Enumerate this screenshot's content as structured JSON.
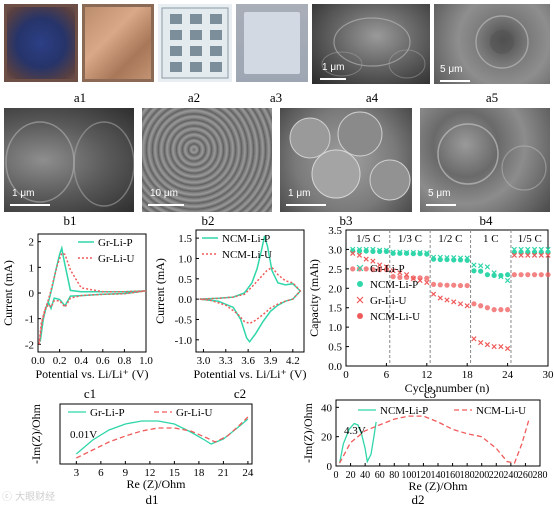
{
  "captions": {
    "a1": "a1",
    "a2": "a2",
    "a3": "a3",
    "a4": "a4",
    "a5": "a5",
    "b1": "b1",
    "b2": "b2",
    "b3": "b3",
    "b4": "b4",
    "c1": "c1",
    "c2": "c2",
    "c3": "c3",
    "d1": "d1",
    "d2": "d2"
  },
  "scalebars": {
    "a4": "1 μm",
    "a5": "5 μm",
    "b1": "1 μm",
    "b2": "10 μm",
    "b3": "1 μm",
    "b4": "5 μm"
  },
  "colors": {
    "p_series": "#2fd6a9",
    "u_series": "#f05a5a"
  },
  "c1": {
    "ylabel": "Current (mA)",
    "xlabel": "Potential vs. Li/Li⁺ (V)",
    "xticks": [
      "0.0",
      "0.2",
      "0.4",
      "0.6",
      "0.8",
      "1.0"
    ],
    "yticks": [
      "2",
      "1",
      "0",
      "-1",
      "-2"
    ],
    "legend": [
      "Gr-Li-P",
      "Gr-Li-U"
    ]
  },
  "c2": {
    "ylabel": "Current (mA)",
    "xlabel": "Potential vs. Li/Li⁺ (V)",
    "xticks": [
      "3.0",
      "3.3",
      "3.6",
      "3.9",
      "4.2"
    ],
    "yticks": [
      "1.5",
      "1.0",
      "0.5",
      "0.0",
      "-0.5",
      "-1.0"
    ],
    "legend": [
      "NCM-Li-P",
      "NCM-Li-U"
    ]
  },
  "c3": {
    "ylabel": "Capacity (mAh)",
    "xlabel": "Cycle number (n)",
    "xticks": [
      "0",
      "6",
      "12",
      "18",
      "24",
      "30"
    ],
    "yticks": [
      "3.5",
      "3.0",
      "2.5",
      "2.0",
      "1.5",
      "1.0",
      "0.5",
      "0.0"
    ],
    "rates": [
      "1/5 C",
      "1/3 C",
      "1/2 C",
      "1 C",
      "1/5 C"
    ],
    "legend": [
      "Gr-Li-P",
      "NCM-Li-P",
      "Gr-Li-U",
      "NCM-Li-U"
    ]
  },
  "d1": {
    "ylabel": "-Im(Z)/Ohm",
    "xlabel": "Re (Z)/Ohm",
    "xticks": [
      "3",
      "6",
      "9",
      "12",
      "15",
      "18",
      "21",
      "24"
    ],
    "legend": [
      "Gr-Li-P",
      "Gr-Li-U"
    ],
    "annotation": "0.01V"
  },
  "d2": {
    "ylabel": "-Im(Z)/Ohm",
    "xlabel": "Re (Z)/Ohm",
    "xticks": [
      "0",
      "20",
      "40",
      "60",
      "80",
      "100",
      "120",
      "140",
      "160",
      "180",
      "200",
      "220",
      "240",
      "260",
      "280"
    ],
    "yticks": [
      "40",
      "20",
      "0"
    ],
    "legend": [
      "NCM-Li-P",
      "NCM-Li-U"
    ],
    "annotation": "4.3V"
  },
  "watermark": "ⓒ 大眼财经",
  "chart_data": [
    {
      "type": "line",
      "title": "c1",
      "xlabel": "Potential vs. Li/Li⁺ (V)",
      "ylabel": "Current (mA)",
      "xlim": [
        0.0,
        1.0
      ],
      "ylim": [
        -2.3,
        2.3
      ],
      "series": [
        {
          "name": "Gr-Li-P",
          "style": "solid",
          "x": [
            0.02,
            0.04,
            0.07,
            0.1,
            0.13,
            0.16,
            0.2,
            0.22,
            0.24,
            0.3,
            0.4,
            0.6,
            0.8,
            1.0,
            0.8,
            0.6,
            0.4,
            0.3,
            0.25,
            0.2,
            0.15,
            0.12,
            0.1,
            0.08,
            0.05,
            0.02
          ],
          "y": [
            -1.9,
            -1.1,
            -0.6,
            -0.3,
            0.2,
            0.8,
            1.5,
            1.75,
            1.3,
            0.1,
            0.05,
            0.05,
            0.05,
            0.08,
            -0.02,
            -0.05,
            -0.1,
            -0.12,
            -0.5,
            -0.25,
            -0.2,
            -0.6,
            -0.4,
            -0.5,
            -1.0,
            -1.9
          ]
        },
        {
          "name": "Gr-Li-U",
          "style": "dotted",
          "x": [
            0.01,
            0.03,
            0.06,
            0.09,
            0.12,
            0.15,
            0.18,
            0.22,
            0.25,
            0.3,
            0.4,
            0.6,
            0.8,
            1.0,
            0.8,
            0.6,
            0.4,
            0.3,
            0.25,
            0.2,
            0.15,
            0.12,
            0.1,
            0.07,
            0.04,
            0.01
          ],
          "y": [
            -2.0,
            -1.2,
            -0.7,
            -0.35,
            0.1,
            0.6,
            1.1,
            1.55,
            1.5,
            0.9,
            0.2,
            0.05,
            0.05,
            0.08,
            -0.03,
            -0.05,
            -0.1,
            -0.2,
            -0.55,
            -0.3,
            -0.3,
            -0.55,
            -0.45,
            -0.6,
            -1.1,
            -2.0
          ]
        }
      ]
    },
    {
      "type": "line",
      "title": "c2",
      "xlabel": "Potential vs. Li/Li⁺ (V)",
      "ylabel": "Current (mA)",
      "xlim": [
        2.9,
        4.35
      ],
      "ylim": [
        -1.3,
        1.7
      ],
      "series": [
        {
          "name": "NCM-Li-P",
          "style": "solid",
          "x": [
            2.95,
            3.2,
            3.4,
            3.55,
            3.65,
            3.72,
            3.78,
            3.82,
            3.86,
            3.92,
            4.0,
            4.1,
            4.2,
            4.3,
            4.2,
            4.1,
            4.0,
            3.9,
            3.8,
            3.7,
            3.62,
            3.58,
            3.5,
            3.4,
            3.2,
            2.95
          ],
          "y": [
            0.0,
            0.02,
            0.05,
            0.15,
            0.4,
            0.75,
            1.2,
            1.55,
            1.3,
            0.7,
            0.4,
            0.35,
            0.38,
            0.2,
            0.0,
            -0.05,
            -0.15,
            -0.3,
            -0.55,
            -0.85,
            -1.05,
            -0.95,
            -0.5,
            -0.2,
            -0.05,
            0.0
          ]
        },
        {
          "name": "NCM-Li-U",
          "style": "dotted",
          "x": [
            2.95,
            3.2,
            3.4,
            3.55,
            3.65,
            3.75,
            3.85,
            3.92,
            4.0,
            4.1,
            4.2,
            4.3,
            4.2,
            4.1,
            4.0,
            3.9,
            3.8,
            3.7,
            3.62,
            3.55,
            3.45,
            3.3,
            3.1,
            2.95
          ],
          "y": [
            0.0,
            0.02,
            0.05,
            0.12,
            0.3,
            0.5,
            0.7,
            0.78,
            0.6,
            0.45,
            0.4,
            0.2,
            0.0,
            -0.05,
            -0.12,
            -0.22,
            -0.38,
            -0.52,
            -0.6,
            -0.55,
            -0.35,
            -0.15,
            -0.03,
            0.0
          ]
        }
      ]
    },
    {
      "type": "scatter",
      "title": "c3",
      "xlabel": "Cycle number (n)",
      "ylabel": "Capacity (mAh)",
      "xlim": [
        0,
        30
      ],
      "ylim": [
        0.0,
        3.5
      ],
      "series": [
        {
          "name": "Gr-Li-P",
          "marker": "x",
          "x": [
            1,
            2,
            3,
            4,
            5,
            6,
            7,
            8,
            9,
            10,
            11,
            12,
            13,
            14,
            15,
            16,
            17,
            18,
            19,
            20,
            21,
            22,
            23,
            24,
            25,
            26,
            27,
            28,
            29,
            30
          ],
          "y": [
            3.0,
            3.0,
            3.0,
            3.0,
            2.98,
            2.98,
            2.93,
            2.93,
            2.92,
            2.92,
            2.92,
            2.91,
            2.8,
            2.8,
            2.79,
            2.79,
            2.78,
            2.78,
            2.6,
            2.58,
            2.55,
            2.4,
            2.3,
            2.2,
            3.0,
            3.0,
            3.0,
            3.0,
            3.0,
            3.0
          ]
        },
        {
          "name": "NCM-Li-P",
          "marker": "o",
          "x": [
            1,
            2,
            3,
            4,
            5,
            6,
            7,
            8,
            9,
            10,
            11,
            12,
            13,
            14,
            15,
            16,
            17,
            18,
            19,
            20,
            21,
            22,
            23,
            24,
            25,
            26,
            27,
            28,
            29,
            30
          ],
          "y": [
            2.96,
            2.96,
            2.96,
            2.95,
            2.95,
            2.95,
            2.9,
            2.9,
            2.9,
            2.89,
            2.89,
            2.88,
            2.75,
            2.74,
            2.74,
            2.73,
            2.73,
            2.72,
            2.45,
            2.44,
            2.35,
            2.33,
            2.33,
            2.35,
            2.92,
            2.92,
            2.92,
            2.92,
            2.92,
            2.92
          ]
        },
        {
          "name": "Gr-Li-U",
          "marker": "x",
          "x": [
            1,
            2,
            3,
            4,
            5,
            6,
            7,
            8,
            9,
            10,
            11,
            12,
            13,
            14,
            15,
            16,
            17,
            18,
            19,
            20,
            21,
            22,
            23,
            24,
            25,
            26,
            27,
            28,
            29,
            30
          ],
          "y": [
            2.9,
            2.85,
            2.75,
            2.7,
            2.6,
            2.55,
            2.45,
            2.4,
            2.35,
            2.25,
            2.2,
            2.15,
            1.85,
            1.75,
            1.7,
            1.65,
            1.6,
            1.55,
            0.7,
            0.6,
            0.55,
            0.5,
            0.5,
            0.45,
            2.85,
            2.85,
            2.85,
            2.85,
            2.85,
            2.85
          ]
        },
        {
          "name": "NCM-Li-U",
          "marker": "o",
          "x": [
            1,
            2,
            3,
            4,
            5,
            6,
            7,
            8,
            9,
            10,
            11,
            12,
            13,
            14,
            15,
            16,
            17,
            18,
            19,
            20,
            21,
            22,
            23,
            24,
            25,
            26,
            27,
            28,
            29,
            30
          ],
          "y": [
            2.5,
            2.5,
            2.5,
            2.48,
            2.48,
            2.48,
            2.3,
            2.28,
            2.28,
            2.27,
            2.27,
            2.26,
            2.1,
            2.09,
            2.08,
            2.08,
            2.07,
            2.07,
            1.6,
            1.55,
            1.5,
            1.45,
            1.45,
            1.45,
            2.35,
            2.35,
            2.35,
            2.35,
            2.35,
            2.35
          ]
        }
      ]
    },
    {
      "type": "line",
      "title": "d1",
      "xlabel": "Re (Z)/Ohm",
      "ylabel": "-Im(Z)/Ohm",
      "xlim": [
        1,
        24.5
      ],
      "ylim": [
        0,
        6
      ],
      "series": [
        {
          "name": "Gr-Li-P",
          "style": "solid",
          "x": [
            3,
            5,
            7,
            9,
            11,
            13,
            15,
            17,
            18.5,
            19.5,
            21,
            23,
            24
          ],
          "y": [
            1.0,
            2.4,
            3.4,
            4.0,
            4.3,
            4.3,
            4.0,
            3.2,
            2.5,
            2.0,
            2.5,
            3.8,
            4.5
          ]
        },
        {
          "name": "Gr-Li-U",
          "style": "dashed",
          "x": [
            3,
            5,
            7,
            9,
            11,
            13,
            15,
            17,
            19,
            20,
            21.5,
            23,
            24
          ],
          "y": [
            0.6,
            1.4,
            2.2,
            2.8,
            3.3,
            3.6,
            3.6,
            3.3,
            2.6,
            2.2,
            2.8,
            3.9,
            4.7
          ]
        }
      ]
    },
    {
      "type": "line",
      "title": "d2",
      "xlabel": "Re (Z)/Ohm",
      "ylabel": "-Im(Z)/Ohm",
      "xlim": [
        0,
        280
      ],
      "ylim": [
        0,
        45
      ],
      "series": [
        {
          "name": "NCM-Li-P",
          "style": "solid",
          "x": [
            5,
            10,
            18,
            25,
            30,
            35,
            40,
            43,
            48,
            52,
            55
          ],
          "y": [
            2,
            15,
            25,
            29,
            28,
            22,
            12,
            3,
            8,
            20,
            30
          ]
        },
        {
          "name": "NCM-Li-U",
          "style": "dashed",
          "x": [
            5,
            20,
            40,
            60,
            80,
            100,
            120,
            140,
            160,
            180,
            200,
            220,
            235,
            245,
            255,
            265
          ],
          "y": [
            2,
            16,
            24,
            28,
            32,
            34,
            34,
            30,
            25,
            22,
            20,
            12,
            3,
            2,
            15,
            32
          ]
        }
      ]
    }
  ]
}
